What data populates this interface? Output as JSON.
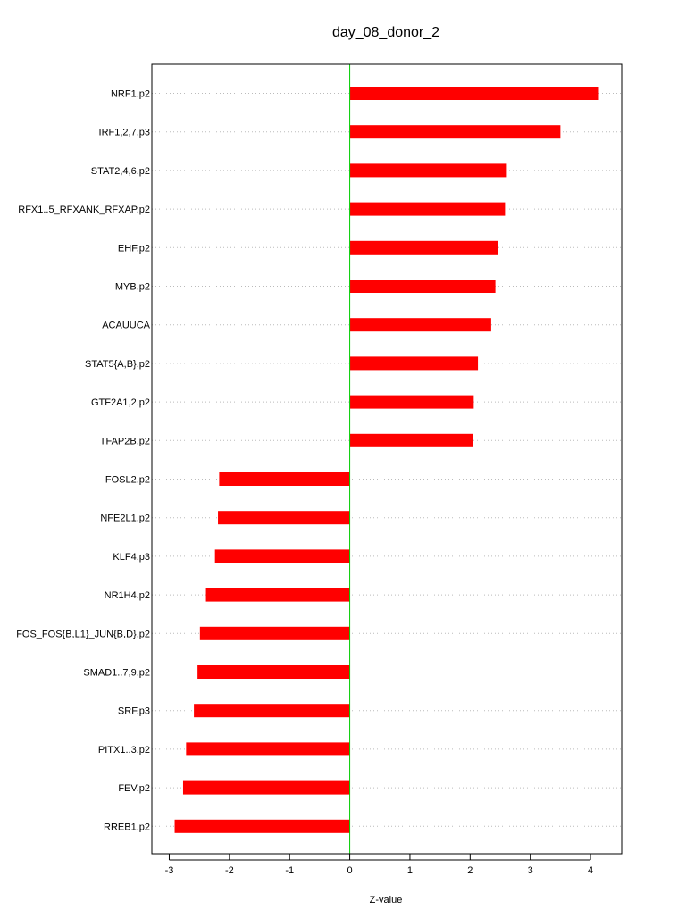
{
  "chart_data": {
    "type": "bar",
    "orientation": "horizontal",
    "title": "day_08_donor_2",
    "xlabel": "Z-value",
    "ylabel": "",
    "xlim": [
      -3.2,
      4.4
    ],
    "xticks": [
      -3,
      -2,
      -1,
      0,
      1,
      2,
      3,
      4
    ],
    "grid": "horizontal-dotted",
    "categories": [
      "NRF1.p2",
      "IRF1,2,7.p3",
      "STAT2,4,6.p2",
      "RFX1..5_RFXANK_RFXAP.p2",
      "EHF.p2",
      "MYB.p2",
      "ACAUUCA",
      "STAT5{A,B}.p2",
      "GTF2A1,2.p2",
      "TFAP2B.p2",
      "FOSL2.p2",
      "NFE2L1.p2",
      "KLF4.p3",
      "NR1H4.p2",
      "FOS_FOS{B,L1}_JUN{B,D}.p2",
      "SMAD1..7,9.p2",
      "SRF.p3",
      "PITX1..3.p2",
      "FEV.p2",
      "RREB1.p2"
    ],
    "values": [
      4.14,
      3.5,
      2.61,
      2.58,
      2.46,
      2.42,
      2.35,
      2.13,
      2.06,
      2.04,
      -2.17,
      -2.19,
      -2.24,
      -2.39,
      -2.49,
      -2.53,
      -2.59,
      -2.72,
      -2.77,
      -2.91
    ],
    "bar_color": "#ff0000",
    "zero_line_color": "#00cc00",
    "grid_color": "#bbbbbb"
  }
}
